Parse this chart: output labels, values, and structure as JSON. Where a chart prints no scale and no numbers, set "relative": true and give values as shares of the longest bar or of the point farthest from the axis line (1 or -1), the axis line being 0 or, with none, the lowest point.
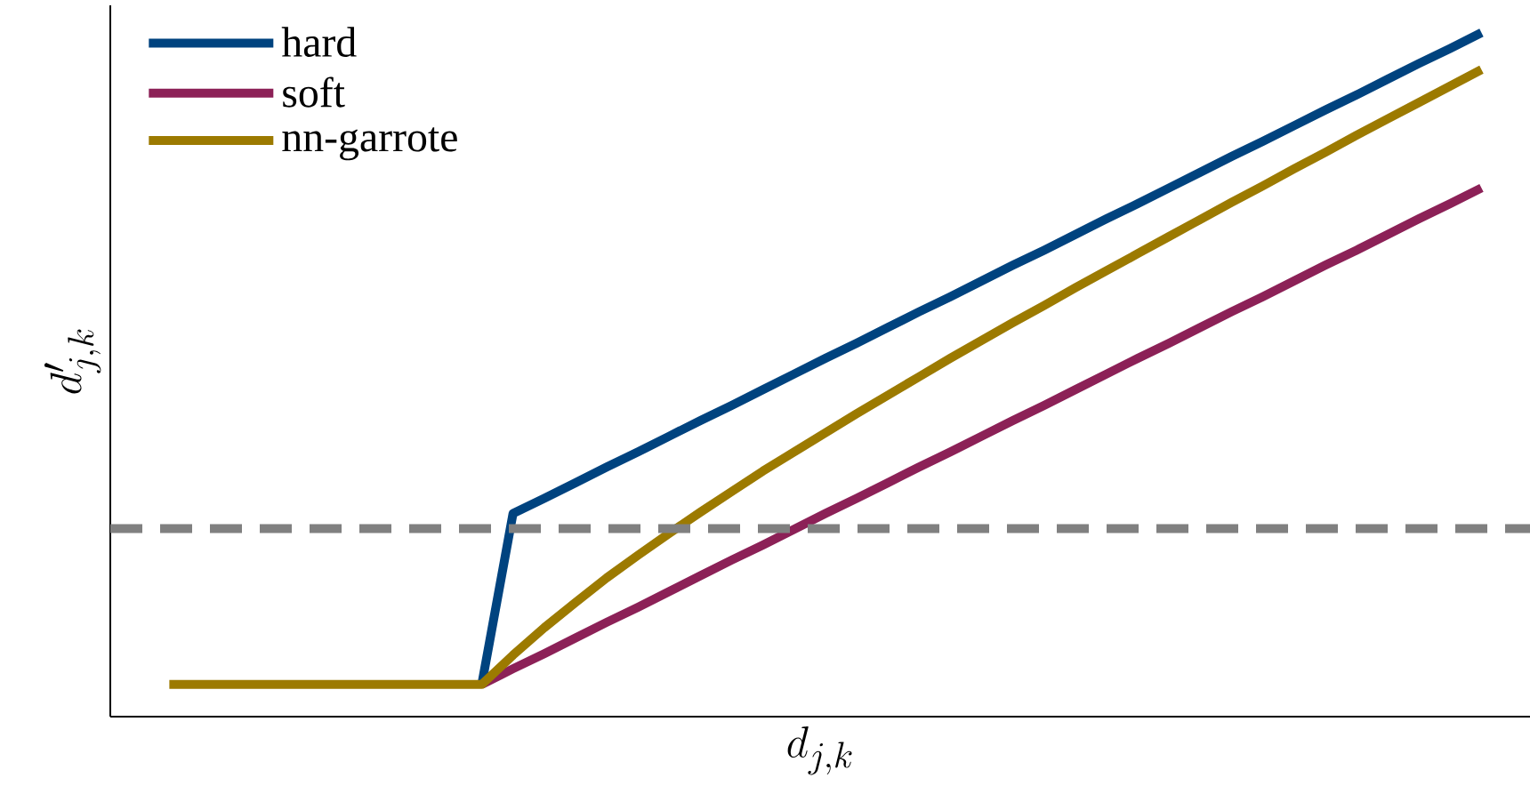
{
  "chart_data": {
    "type": "line",
    "relative": true,
    "xlabel": "d_{j,k}",
    "ylabel": "d'_{j,k}",
    "legend": "top left",
    "marker": "none",
    "line_style": "solid",
    "categories": [
      null,
      null,
      null,
      null,
      null,
      null,
      null,
      null,
      null,
      null,
      null,
      null,
      null,
      null,
      null,
      null,
      null,
      null,
      null,
      null,
      null,
      null,
      null,
      null,
      null,
      null,
      null,
      null,
      null,
      null,
      null,
      null,
      null,
      null,
      null,
      null,
      null,
      null,
      null,
      null,
      null,
      null,
      null
    ],
    "series": [
      {
        "name": "hard",
        "color": "#00437f",
        "values": [
          null,
          null,
          null,
          null,
          null,
          null,
          null,
          null,
          null,
          null,
          0.047,
          0.297,
          0.319,
          0.342,
          0.365,
          0.387,
          0.41,
          0.433,
          0.455,
          0.478,
          0.501,
          0.524,
          0.546,
          0.569,
          0.592,
          0.614,
          0.637,
          0.66,
          0.682,
          0.705,
          0.728,
          0.75,
          0.773,
          0.796,
          0.819,
          0.841,
          0.864,
          0.887,
          0.909,
          0.932,
          0.955,
          0.977,
          1.0
        ]
      },
      {
        "name": "soft",
        "color": "#8c2157",
        "values": [
          null,
          null,
          null,
          null,
          null,
          null,
          null,
          null,
          null,
          null,
          0.047,
          0.07,
          0.092,
          0.115,
          0.138,
          0.16,
          0.183,
          0.206,
          0.229,
          0.251,
          0.274,
          0.297,
          0.319,
          0.342,
          0.365,
          0.387,
          0.41,
          0.433,
          0.455,
          0.478,
          0.501,
          0.524,
          0.546,
          0.569,
          0.592,
          0.614,
          0.637,
          0.66,
          0.682,
          0.705,
          0.728,
          0.75,
          0.773
        ]
      },
      {
        "name": "nn-garrote",
        "color": "#9c7a00",
        "values": [
          0.047,
          0.047,
          0.047,
          0.047,
          0.047,
          0.047,
          0.047,
          0.047,
          0.047,
          0.047,
          0.047,
          0.09,
          0.13,
          0.167,
          0.203,
          0.236,
          0.268,
          0.299,
          0.329,
          0.359,
          0.387,
          0.415,
          0.443,
          0.47,
          0.497,
          0.524,
          0.55,
          0.576,
          0.601,
          0.627,
          0.652,
          0.677,
          0.702,
          0.727,
          0.752,
          0.776,
          0.801,
          0.825,
          0.85,
          0.874,
          0.898,
          0.922,
          0.946
        ]
      }
    ],
    "ref_lines": [
      {
        "axis": "y",
        "value": 0.275,
        "color": "#808080",
        "line_style": "dashed"
      }
    ]
  }
}
